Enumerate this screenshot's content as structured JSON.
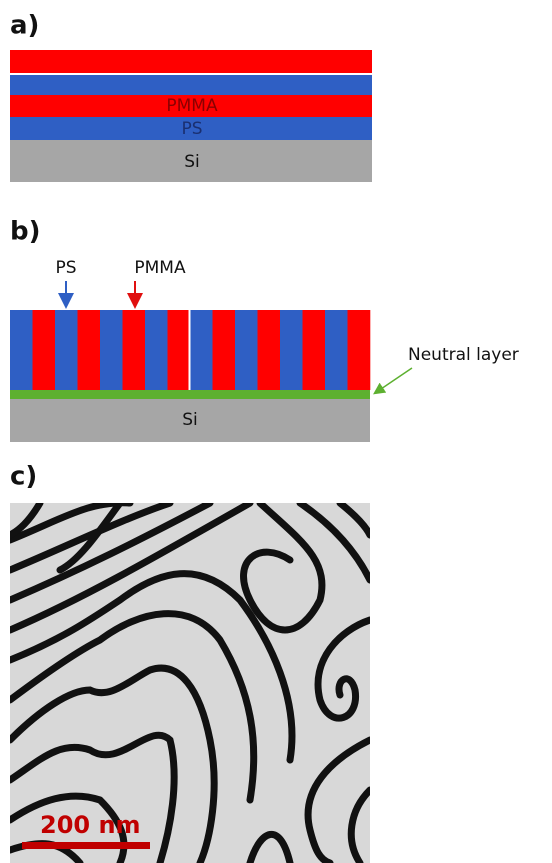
{
  "panels": [
    {
      "label": "a)",
      "layers": {
        "top": "PMMA",
        "middle": "PS",
        "substrate": "Si"
      }
    },
    {
      "label": "b)",
      "pointers": {
        "ps": "PS",
        "pmma": "PMMA"
      },
      "neutral": "Neutral layer",
      "substrate": "Si"
    },
    {
      "label": "c)",
      "scale_bar": "200 nm"
    }
  ]
}
